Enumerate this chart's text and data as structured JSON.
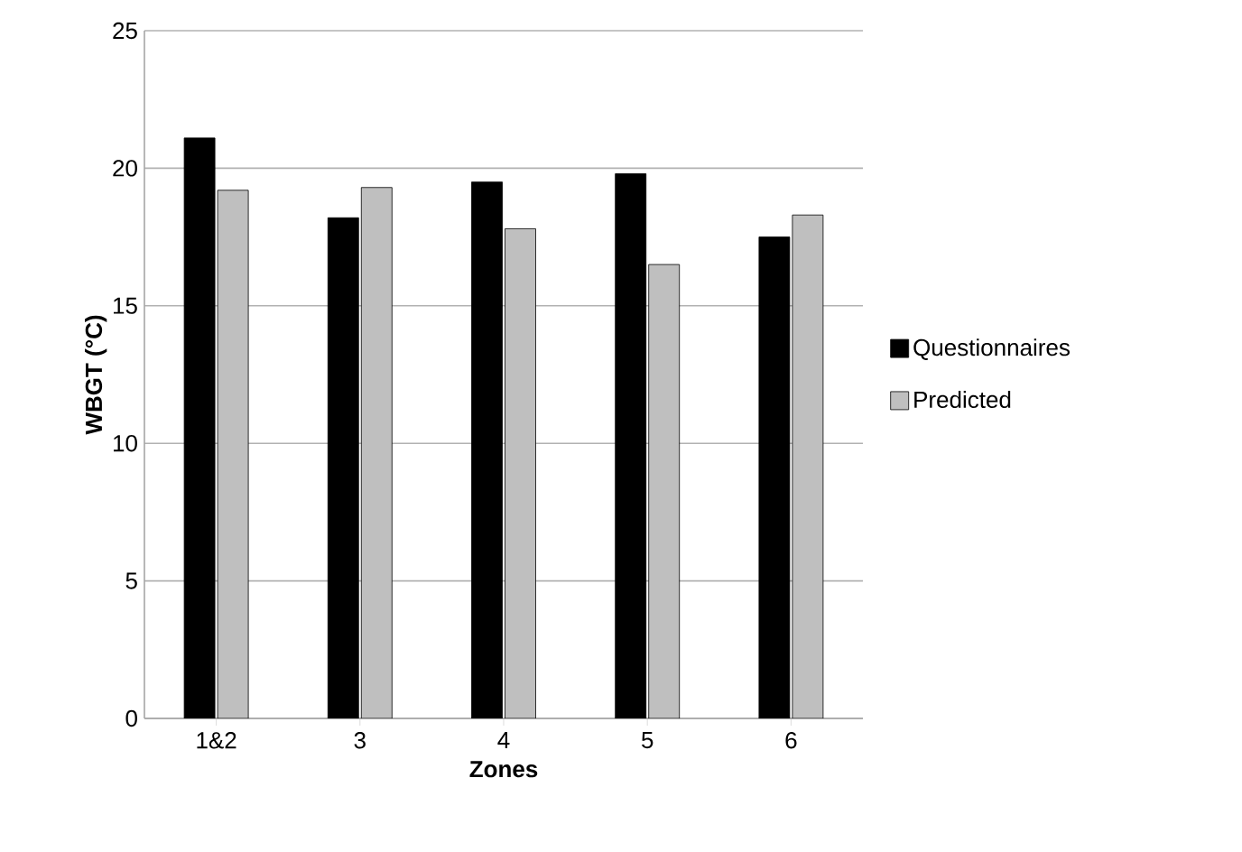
{
  "chart_data": {
    "type": "bar",
    "xlabel": "Zones",
    "ylabel": "WBGT (°C)",
    "categories": [
      "1&2",
      "3",
      "4",
      "5",
      "6"
    ],
    "series": [
      {
        "name": "Questionnaires",
        "color": "#000000",
        "values": [
          21.1,
          18.2,
          19.5,
          19.8,
          17.5
        ]
      },
      {
        "name": "Predicted",
        "color": "#bfbfbf",
        "values": [
          19.2,
          19.3,
          17.8,
          16.5,
          18.3
        ]
      }
    ],
    "ylim": [
      0,
      25
    ],
    "yticks": [
      0,
      5,
      10,
      15,
      20,
      25
    ],
    "grid": "y",
    "legend": "right"
  }
}
